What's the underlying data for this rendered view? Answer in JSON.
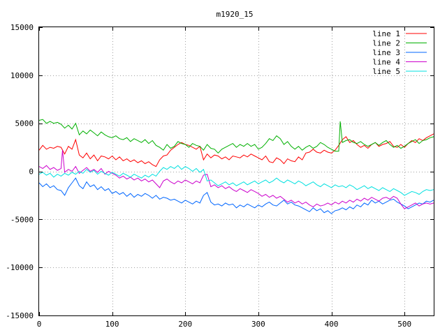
{
  "chart_data": {
    "type": "line",
    "title": "m1920_15",
    "xlabel": "",
    "ylabel": "",
    "xlim": [
      0,
      540
    ],
    "ylim": [
      -15000,
      15000
    ],
    "xticks": [
      0,
      100,
      200,
      300,
      400,
      500
    ],
    "yticks": [
      -15000,
      -10000,
      -5000,
      0,
      5000,
      10000,
      15000
    ],
    "grid": true,
    "legend_position": "top-right",
    "series": [
      {
        "name": "line 1",
        "color": "#ff0000",
        "x": [
          0,
          5,
          10,
          15,
          20,
          25,
          30,
          35,
          40,
          45,
          50,
          55,
          60,
          65,
          70,
          75,
          80,
          85,
          90,
          95,
          100,
          105,
          110,
          115,
          120,
          125,
          130,
          135,
          140,
          145,
          150,
          155,
          160,
          165,
          170,
          175,
          180,
          185,
          190,
          195,
          200,
          205,
          210,
          215,
          220,
          225,
          230,
          235,
          240,
          245,
          250,
          255,
          260,
          265,
          270,
          275,
          280,
          285,
          290,
          295,
          300,
          305,
          310,
          315,
          320,
          325,
          330,
          335,
          340,
          345,
          350,
          355,
          360,
          365,
          370,
          375,
          380,
          385,
          390,
          395,
          400,
          405,
          410,
          415,
          420,
          425,
          430,
          435,
          440,
          445,
          450,
          455,
          460,
          465,
          470,
          475,
          480,
          485,
          490,
          495,
          500,
          505,
          510,
          515,
          520,
          525,
          530,
          535,
          540
        ],
        "y": [
          2200,
          2700,
          2300,
          2500,
          2400,
          2600,
          2500,
          1800,
          2600,
          2300,
          3300,
          1700,
          1400,
          1900,
          1300,
          1700,
          1100,
          1600,
          1500,
          1300,
          1600,
          1200,
          1500,
          1100,
          1300,
          1000,
          1200,
          900,
          1100,
          800,
          1000,
          700,
          500,
          1200,
          1600,
          1700,
          2200,
          2500,
          2800,
          3000,
          2800,
          2700,
          2500,
          2300,
          2600,
          1200,
          1800,
          1400,
          1700,
          1600,
          1300,
          1500,
          1200,
          1600,
          1500,
          1400,
          1700,
          1500,
          1800,
          1600,
          1400,
          1200,
          1600,
          1000,
          900,
          1400,
          1200,
          800,
          1300,
          1100,
          1000,
          1500,
          1200,
          1900,
          2000,
          2300,
          2000,
          1900,
          2200,
          2000,
          1900,
          2200,
          2700,
          3300,
          3600,
          3000,
          3200,
          2800,
          2500,
          2700,
          2400,
          2800,
          3000,
          2600,
          2800,
          2900,
          3100,
          2600,
          2500,
          2800,
          2500,
          2900,
          3200,
          3000,
          3400,
          3200,
          3500,
          3700,
          3900
        ]
      },
      {
        "name": "line 2",
        "color": "#00b000",
        "x": [
          0,
          5,
          10,
          15,
          20,
          25,
          30,
          35,
          40,
          45,
          50,
          55,
          60,
          65,
          70,
          75,
          80,
          85,
          90,
          95,
          100,
          105,
          110,
          115,
          120,
          125,
          130,
          135,
          140,
          145,
          150,
          155,
          160,
          165,
          170,
          175,
          180,
          185,
          190,
          195,
          200,
          205,
          210,
          215,
          220,
          225,
          230,
          235,
          240,
          245,
          250,
          255,
          260,
          265,
          270,
          275,
          280,
          285,
          290,
          295,
          300,
          305,
          310,
          315,
          320,
          325,
          330,
          335,
          340,
          345,
          350,
          355,
          360,
          365,
          370,
          375,
          380,
          385,
          390,
          395,
          400,
          405,
          410,
          412,
          415,
          420,
          425,
          430,
          435,
          440,
          445,
          450,
          455,
          460,
          465,
          470,
          475,
          480,
          485,
          490,
          495,
          500,
          505,
          510,
          515,
          520,
          525,
          530,
          535,
          540
        ],
        "y": [
          5300,
          5400,
          5000,
          5200,
          5000,
          5100,
          4900,
          4500,
          4800,
          4400,
          5000,
          3800,
          4200,
          3900,
          4300,
          4000,
          3700,
          4100,
          3800,
          3600,
          3500,
          3700,
          3400,
          3300,
          3500,
          3100,
          3400,
          3200,
          3000,
          3300,
          2900,
          3200,
          2700,
          2500,
          2200,
          2800,
          2400,
          2600,
          3100,
          2900,
          2800,
          2500,
          2900,
          2700,
          2600,
          2200,
          2800,
          2400,
          2300,
          1900,
          2300,
          2500,
          2700,
          2900,
          2500,
          2800,
          2600,
          2900,
          2600,
          2800,
          2300,
          2500,
          2900,
          3400,
          3200,
          3700,
          3400,
          2800,
          3100,
          2600,
          2300,
          2600,
          2200,
          2500,
          2700,
          2400,
          2600,
          3000,
          2800,
          2500,
          2300,
          2100,
          2100,
          5200,
          3000,
          3200,
          3300,
          3000,
          2900,
          3100,
          2800,
          2600,
          2800,
          3000,
          2700,
          3000,
          3200,
          2800,
          2500,
          2700,
          2400,
          2600,
          2900,
          3100,
          3300,
          2900,
          3200,
          3300,
          3500,
          3600
        ]
      },
      {
        "name": "line 3",
        "color": "#0066ff",
        "x": [
          0,
          5,
          10,
          15,
          20,
          25,
          30,
          35,
          40,
          45,
          50,
          55,
          60,
          65,
          70,
          75,
          80,
          85,
          90,
          95,
          100,
          105,
          110,
          115,
          120,
          125,
          130,
          135,
          140,
          145,
          150,
          155,
          160,
          165,
          170,
          175,
          180,
          185,
          190,
          195,
          200,
          205,
          210,
          215,
          220,
          225,
          230,
          235,
          240,
          245,
          250,
          255,
          260,
          265,
          270,
          275,
          280,
          285,
          290,
          295,
          300,
          305,
          310,
          315,
          320,
          325,
          330,
          335,
          340,
          345,
          350,
          355,
          360,
          365,
          370,
          375,
          380,
          385,
          390,
          395,
          400,
          405,
          410,
          415,
          420,
          425,
          430,
          435,
          440,
          445,
          450,
          455,
          460,
          465,
          470,
          475,
          480,
          485,
          490,
          495,
          500,
          505,
          510,
          515,
          520,
          525,
          530,
          535,
          540
        ],
        "y": [
          -1200,
          -1600,
          -1300,
          -1700,
          -1500,
          -1900,
          -2000,
          -2500,
          -1700,
          -1200,
          -700,
          -1500,
          -1800,
          -1100,
          -1600,
          -1400,
          -1900,
          -1600,
          -2000,
          -1800,
          -2300,
          -2100,
          -2400,
          -2200,
          -2600,
          -2300,
          -2700,
          -2400,
          -2600,
          -2300,
          -2500,
          -2800,
          -2500,
          -2900,
          -2700,
          -2800,
          -3000,
          -2900,
          -3100,
          -3300,
          -3000,
          -3200,
          -3400,
          -3100,
          -3300,
          -2500,
          -2200,
          -3200,
          -3500,
          -3400,
          -3600,
          -3300,
          -3500,
          -3400,
          -3800,
          -3500,
          -3700,
          -3400,
          -3600,
          -3800,
          -3500,
          -3700,
          -3400,
          -3200,
          -3500,
          -3600,
          -3300,
          -3000,
          -3400,
          -3200,
          -3500,
          -3600,
          -3800,
          -4000,
          -4200,
          -3800,
          -4100,
          -3900,
          -4300,
          -4100,
          -4400,
          -4100,
          -4000,
          -3800,
          -4000,
          -3700,
          -3900,
          -3500,
          -3700,
          -3300,
          -3500,
          -3000,
          -3300,
          -3100,
          -3400,
          -3200,
          -3000,
          -2900,
          -3200,
          -3400,
          -3600,
          -3900,
          -3700,
          -3500,
          -3300,
          -3400,
          -3100,
          -3200,
          -3000
        ]
      },
      {
        "name": "line 4",
        "color": "#cc00cc",
        "x": [
          0,
          5,
          10,
          15,
          20,
          25,
          30,
          32,
          35,
          40,
          45,
          50,
          55,
          60,
          65,
          70,
          75,
          80,
          85,
          90,
          95,
          100,
          105,
          110,
          115,
          120,
          125,
          130,
          135,
          140,
          145,
          150,
          155,
          160,
          165,
          170,
          175,
          180,
          185,
          190,
          195,
          200,
          205,
          210,
          215,
          220,
          225,
          230,
          235,
          240,
          245,
          250,
          255,
          260,
          265,
          270,
          275,
          280,
          285,
          290,
          295,
          300,
          305,
          310,
          315,
          320,
          325,
          330,
          335,
          340,
          345,
          350,
          355,
          360,
          365,
          370,
          375,
          380,
          385,
          390,
          395,
          400,
          405,
          410,
          415,
          420,
          425,
          430,
          435,
          440,
          445,
          450,
          455,
          460,
          465,
          470,
          475,
          480,
          485,
          490,
          495,
          500,
          505,
          510,
          515,
          520,
          525,
          530,
          535,
          540
        ],
        "y": [
          500,
          300,
          600,
          200,
          400,
          100,
          300,
          2200,
          -100,
          200,
          0,
          500,
          -200,
          100,
          400,
          0,
          200,
          -100,
          300,
          -300,
          0,
          -200,
          -400,
          -700,
          -500,
          -800,
          -600,
          -900,
          -700,
          -1000,
          -800,
          -1100,
          -900,
          -1300,
          -1700,
          -1000,
          -800,
          -1100,
          -1300,
          -1000,
          -1200,
          -900,
          -1100,
          -1300,
          -1000,
          -1200,
          -400,
          -300,
          -1600,
          -1400,
          -1700,
          -1500,
          -1800,
          -1600,
          -1900,
          -2100,
          -1800,
          -2000,
          -2200,
          -1900,
          -2100,
          -2300,
          -2600,
          -2400,
          -2700,
          -2500,
          -2800,
          -2600,
          -2900,
          -3200,
          -3000,
          -3300,
          -3100,
          -3400,
          -3200,
          -3500,
          -3700,
          -3400,
          -3600,
          -3500,
          -3300,
          -3500,
          -3200,
          -3400,
          -3100,
          -3300,
          -3000,
          -3200,
          -2900,
          -3100,
          -2800,
          -3000,
          -2700,
          -2900,
          -3100,
          -2800,
          -2700,
          -2900,
          -2600,
          -2800,
          -3400,
          -3900,
          -3700,
          -3500,
          -3300,
          -3600,
          -3400,
          -3300,
          -3400,
          -3300
        ]
      },
      {
        "name": "line 5",
        "color": "#00e0e0",
        "x": [
          0,
          5,
          10,
          15,
          20,
          25,
          30,
          35,
          40,
          45,
          50,
          55,
          60,
          65,
          70,
          75,
          80,
          85,
          90,
          95,
          100,
          105,
          110,
          115,
          120,
          125,
          130,
          135,
          140,
          145,
          150,
          155,
          160,
          165,
          170,
          175,
          180,
          185,
          190,
          195,
          200,
          205,
          210,
          215,
          220,
          225,
          230,
          235,
          240,
          245,
          250,
          255,
          260,
          265,
          270,
          275,
          280,
          285,
          290,
          295,
          300,
          305,
          310,
          315,
          320,
          325,
          330,
          335,
          340,
          345,
          350,
          355,
          360,
          365,
          370,
          375,
          380,
          385,
          390,
          395,
          400,
          405,
          410,
          415,
          420,
          425,
          430,
          435,
          440,
          445,
          450,
          455,
          460,
          465,
          470,
          475,
          480,
          485,
          490,
          495,
          500,
          505,
          510,
          515,
          520,
          525,
          530,
          535,
          540
        ],
        "y": [
          -300,
          -100,
          -400,
          -200,
          -600,
          -300,
          -500,
          -200,
          -400,
          -100,
          -300,
          0,
          -200,
          200,
          -100,
          100,
          -300,
          0,
          -200,
          -400,
          -100,
          -300,
          -500,
          -200,
          -400,
          -600,
          -300,
          -500,
          -700,
          -400,
          -600,
          -300,
          -500,
          0,
          400,
          200,
          500,
          300,
          600,
          200,
          500,
          300,
          0,
          300,
          -100,
          200,
          -1000,
          -900,
          -1200,
          -1500,
          -1300,
          -1100,
          -1400,
          -1200,
          -1500,
          -1300,
          -1100,
          -1400,
          -1200,
          -1000,
          -1300,
          -1100,
          -900,
          -1200,
          -1000,
          -700,
          -1000,
          -1200,
          -900,
          -1100,
          -1300,
          -1000,
          -1200,
          -1500,
          -1300,
          -1100,
          -1400,
          -1600,
          -1300,
          -1500,
          -1700,
          -1400,
          -1600,
          -1500,
          -1700,
          -1400,
          -1600,
          -1900,
          -1700,
          -1500,
          -1800,
          -1600,
          -1800,
          -2000,
          -1700,
          -1900,
          -2100,
          -1800,
          -2000,
          -2200,
          -2500,
          -2300,
          -2100,
          -2200,
          -2400,
          -2100,
          -1900,
          -2000,
          -1900
        ]
      }
    ]
  }
}
